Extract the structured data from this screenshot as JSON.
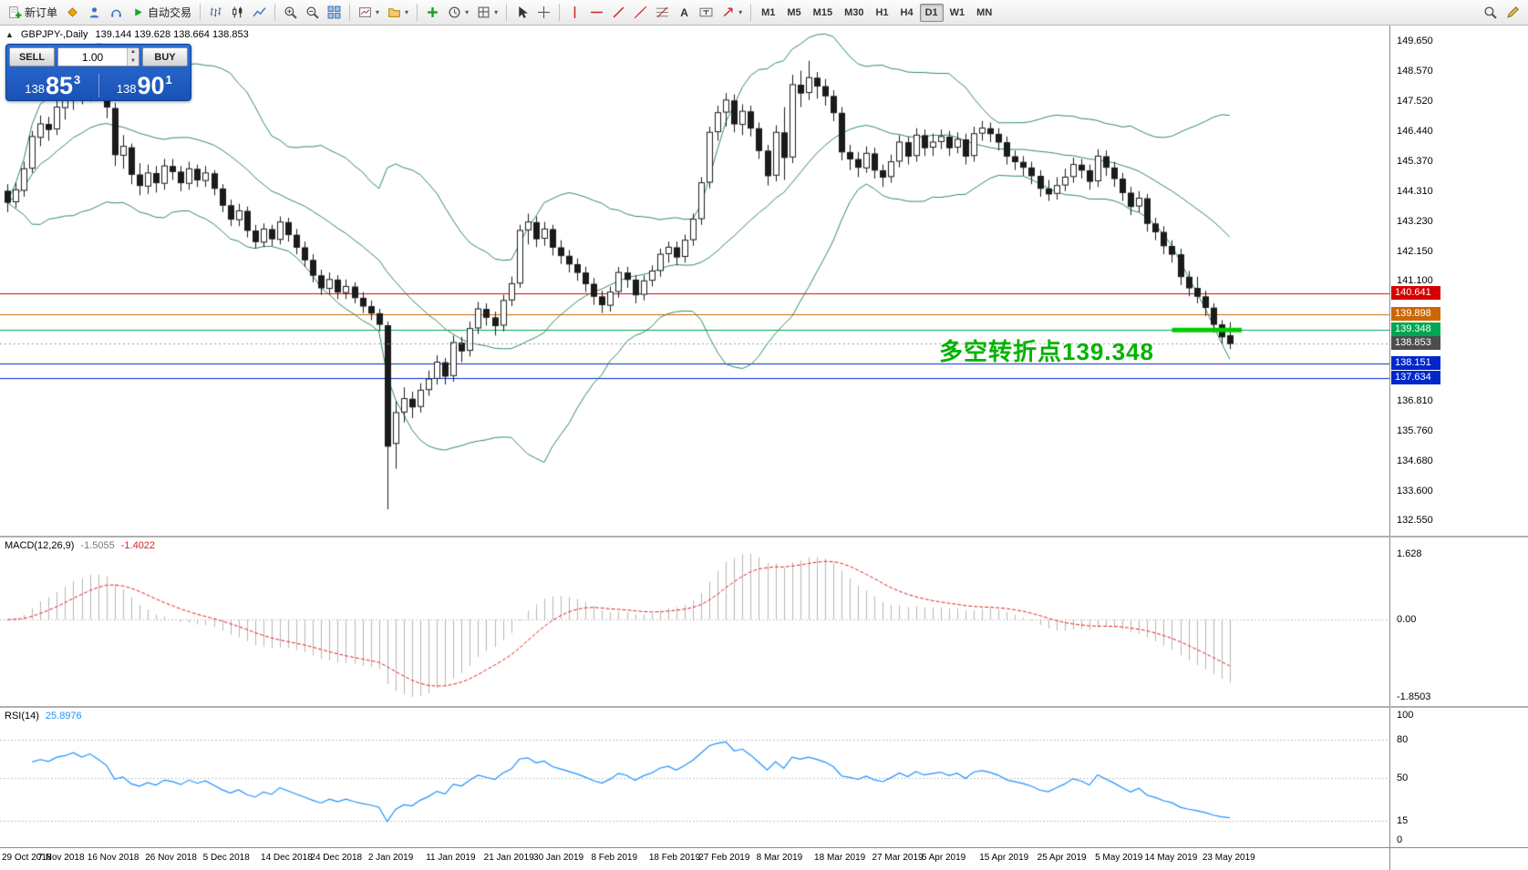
{
  "toolbar": {
    "new_order_label": "新订单",
    "autotrading_label": "自动交易",
    "timeframes": [
      "M1",
      "M5",
      "M15",
      "M30",
      "H1",
      "H4",
      "D1",
      "W1",
      "MN"
    ],
    "active_timeframe": "D1"
  },
  "trade_panel": {
    "sell_label": "SELL",
    "buy_label": "BUY",
    "volume": "1.00",
    "sell_price": {
      "main": "138",
      "pips": "85",
      "pt": "3"
    },
    "buy_price": {
      "main": "138",
      "pips": "90",
      "pt": "1"
    }
  },
  "chart": {
    "symbol_period": "GBPJPY-,Daily",
    "ohlc_text": "139.144 139.628 138.664 138.853",
    "annotation": {
      "text": "多空转折点139.348",
      "color": "#00b300"
    },
    "price_axis_labels": [
      "149.650",
      "148.570",
      "147.520",
      "146.440",
      "145.370",
      "144.310",
      "143.230",
      "142.150",
      "141.100",
      "136.810",
      "135.760",
      "134.680",
      "133.600",
      "132.550"
    ],
    "price_tags": [
      {
        "label": "140.641",
        "price": 140.641,
        "bg": "#d60000"
      },
      {
        "label": "139.898",
        "price": 139.898,
        "bg": "#cc6600"
      },
      {
        "label": "139.348",
        "price": 139.348,
        "bg": "#00a651"
      },
      {
        "label": "138.853",
        "price": 138.853,
        "bg": "#4d4d4d"
      },
      {
        "label": "138.151",
        "price": 138.151,
        "bg": "#0026cc"
      },
      {
        "label": "137.634",
        "price": 137.634,
        "bg": "#0026cc"
      }
    ],
    "levels": [
      {
        "price": 140.641,
        "color": "#d60000"
      },
      {
        "price": 139.898,
        "color": "#cc6600"
      },
      {
        "price": 139.348,
        "color": "#00a651"
      },
      {
        "price": 138.151,
        "color": "#0026cc"
      },
      {
        "price": 137.634,
        "color": "#0026cc"
      }
    ],
    "bid_line": {
      "price": 138.853,
      "color": "#999999"
    },
    "highlight": {
      "price": 139.348,
      "from_index": 141,
      "to_x": 1362,
      "color": "#00ca00"
    }
  },
  "macd": {
    "label": "MACD(12,26,9)",
    "value_main": "-1.5055",
    "value_signal": "-1.4022",
    "axis": [
      "1.628",
      "0.00",
      "-1.8503"
    ],
    "histogram_color": "#b6b6b6",
    "signal_color": "#e02020"
  },
  "rsi": {
    "label": "RSI(14)",
    "value": "25.8976",
    "axis": [
      "100",
      "80",
      "50",
      "15",
      "0"
    ],
    "levels": [
      80,
      50,
      15
    ],
    "line_color": "#1E90FF"
  },
  "chart_data": [
    {
      "type": "candlestick",
      "title": "GBPJPY-,Daily",
      "ylim": [
        132.4,
        149.95
      ],
      "x_labels": [
        "29 Oct 2018",
        "7 Nov 2018",
        "16 Nov 2018",
        "26 Nov 2018",
        "5 Dec 2018",
        "14 Dec 2018",
        "24 Dec 2018",
        "2 Jan 2019",
        "11 Jan 2019",
        "21 Jan 2019",
        "30 Jan 2019",
        "8 Feb 2019",
        "18 Feb 2019",
        "27 Feb 2019",
        "8 Mar 2019",
        "18 Mar 2019",
        "27 Mar 2019",
        "5 Apr 2019",
        "15 Apr 2019",
        "25 Apr 2019",
        "5 May 2019",
        "14 May 2019",
        "23 May 2019"
      ],
      "overlays": {
        "bollinger_bands": {
          "period": 20,
          "deviation": 2,
          "color": "#2E8B57"
        },
        "horizontal_levels": [
          140.641,
          139.898,
          139.348,
          138.151,
          137.634
        ],
        "current_price": 138.853,
        "trend_marker_price": 139.348
      },
      "ohlc": [
        [
          144.3,
          144.55,
          143.55,
          143.9
        ],
        [
          143.92,
          144.6,
          143.7,
          144.35
        ],
        [
          144.33,
          145.35,
          144.1,
          145.1
        ],
        [
          145.12,
          146.45,
          144.95,
          146.25
        ],
        [
          146.22,
          147.0,
          145.9,
          146.7
        ],
        [
          146.68,
          146.95,
          146.1,
          146.5
        ],
        [
          146.52,
          147.55,
          146.3,
          147.3
        ],
        [
          147.28,
          147.9,
          146.85,
          147.6
        ],
        [
          147.58,
          148.35,
          147.2,
          148.2
        ],
        [
          148.18,
          148.4,
          147.4,
          147.8
        ],
        [
          147.78,
          148.5,
          147.5,
          148.4
        ],
        [
          148.38,
          148.55,
          147.55,
          147.9
        ],
        [
          147.88,
          148.6,
          146.9,
          147.3
        ],
        [
          147.25,
          147.45,
          145.2,
          145.6
        ],
        [
          145.58,
          146.3,
          145.1,
          145.9
        ],
        [
          145.85,
          146.0,
          144.55,
          144.9
        ],
        [
          144.88,
          145.3,
          144.15,
          144.5
        ],
        [
          144.48,
          145.25,
          144.2,
          144.95
        ],
        [
          144.93,
          145.2,
          144.25,
          144.6
        ],
        [
          144.58,
          145.45,
          144.35,
          145.2
        ],
        [
          145.18,
          145.45,
          144.7,
          145.0
        ],
        [
          144.98,
          145.2,
          144.3,
          144.6
        ],
        [
          144.58,
          145.35,
          144.35,
          145.1
        ],
        [
          145.08,
          145.25,
          144.45,
          144.7
        ],
        [
          144.68,
          145.2,
          144.45,
          144.95
        ],
        [
          144.92,
          145.05,
          144.15,
          144.4
        ],
        [
          144.38,
          144.55,
          143.55,
          143.8
        ],
        [
          143.78,
          144.0,
          143.05,
          143.3
        ],
        [
          143.28,
          143.85,
          143.05,
          143.6
        ],
        [
          143.58,
          143.75,
          142.65,
          142.9
        ],
        [
          142.88,
          143.1,
          142.25,
          142.5
        ],
        [
          142.48,
          143.15,
          142.3,
          142.95
        ],
        [
          142.93,
          143.1,
          142.35,
          142.6
        ],
        [
          142.58,
          143.4,
          142.4,
          143.2
        ],
        [
          143.18,
          143.35,
          142.5,
          142.75
        ],
        [
          142.73,
          142.95,
          142.05,
          142.3
        ],
        [
          142.28,
          142.5,
          141.6,
          141.85
        ],
        [
          141.83,
          142.05,
          141.05,
          141.3
        ],
        [
          141.28,
          141.5,
          140.6,
          140.85
        ],
        [
          140.83,
          141.4,
          140.6,
          141.15
        ],
        [
          141.13,
          141.3,
          140.45,
          140.7
        ],
        [
          140.68,
          141.15,
          140.45,
          140.9
        ],
        [
          140.88,
          141.05,
          140.3,
          140.5
        ],
        [
          140.48,
          140.7,
          139.95,
          140.2
        ],
        [
          140.18,
          140.4,
          139.7,
          139.95
        ],
        [
          139.93,
          140.1,
          139.3,
          139.55
        ],
        [
          139.5,
          139.65,
          132.95,
          135.2
        ],
        [
          135.3,
          136.8,
          134.4,
          136.4
        ],
        [
          136.42,
          137.3,
          136.05,
          136.9
        ],
        [
          136.88,
          137.15,
          136.2,
          136.6
        ],
        [
          136.62,
          137.45,
          136.4,
          137.2
        ],
        [
          137.22,
          137.9,
          137.0,
          137.6
        ],
        [
          137.62,
          138.45,
          137.4,
          138.2
        ],
        [
          138.18,
          138.35,
          137.4,
          137.7
        ],
        [
          137.72,
          139.15,
          137.5,
          138.9
        ],
        [
          138.88,
          139.1,
          138.2,
          138.6
        ],
        [
          138.62,
          139.65,
          138.4,
          139.4
        ],
        [
          139.42,
          140.35,
          139.2,
          140.1
        ],
        [
          140.08,
          140.3,
          139.5,
          139.8
        ],
        [
          139.78,
          140.0,
          139.15,
          139.5
        ],
        [
          139.52,
          140.6,
          139.3,
          140.4
        ],
        [
          140.42,
          141.25,
          140.2,
          141.0
        ],
        [
          141.02,
          143.1,
          140.85,
          142.9
        ],
        [
          142.92,
          143.5,
          142.4,
          143.2
        ],
        [
          143.18,
          143.4,
          142.3,
          142.6
        ],
        [
          142.62,
          143.2,
          142.35,
          142.95
        ],
        [
          142.93,
          143.1,
          142.0,
          142.3
        ],
        [
          142.28,
          142.55,
          141.7,
          142.0
        ],
        [
          141.98,
          142.2,
          141.4,
          141.7
        ],
        [
          141.68,
          141.9,
          141.1,
          141.4
        ],
        [
          141.38,
          141.6,
          140.7,
          141.0
        ],
        [
          140.98,
          141.2,
          140.25,
          140.55
        ],
        [
          140.53,
          140.75,
          139.95,
          140.25
        ],
        [
          140.23,
          140.9,
          140.0,
          140.7
        ],
        [
          140.72,
          141.6,
          140.5,
          141.4
        ],
        [
          141.38,
          141.6,
          140.85,
          141.15
        ],
        [
          141.13,
          141.3,
          140.3,
          140.6
        ],
        [
          140.62,
          141.3,
          140.4,
          141.1
        ],
        [
          141.12,
          141.65,
          140.9,
          141.45
        ],
        [
          141.47,
          142.25,
          141.25,
          142.05
        ],
        [
          142.07,
          142.5,
          141.75,
          142.3
        ],
        [
          142.28,
          142.5,
          141.65,
          141.95
        ],
        [
          141.97,
          142.75,
          141.75,
          142.55
        ],
        [
          142.57,
          143.5,
          142.35,
          143.3
        ],
        [
          143.32,
          144.8,
          143.1,
          144.6
        ],
        [
          144.62,
          146.6,
          144.4,
          146.4
        ],
        [
          146.42,
          147.35,
          146.1,
          147.1
        ],
        [
          147.12,
          147.8,
          146.6,
          147.55
        ],
        [
          147.52,
          147.75,
          146.4,
          146.7
        ],
        [
          146.68,
          147.4,
          146.3,
          147.15
        ],
        [
          147.13,
          147.35,
          146.25,
          146.55
        ],
        [
          146.53,
          146.75,
          145.45,
          145.75
        ],
        [
          145.73,
          145.95,
          144.5,
          144.85
        ],
        [
          144.87,
          146.65,
          144.65,
          146.4
        ],
        [
          146.38,
          147.3,
          144.7,
          145.5
        ],
        [
          145.52,
          148.45,
          145.3,
          148.1
        ],
        [
          148.08,
          148.6,
          147.3,
          147.8
        ],
        [
          147.82,
          148.95,
          147.55,
          148.35
        ],
        [
          148.33,
          148.55,
          147.6,
          148.05
        ],
        [
          148.03,
          148.3,
          147.35,
          147.7
        ],
        [
          147.68,
          147.9,
          146.8,
          147.1
        ],
        [
          147.08,
          147.3,
          145.4,
          145.7
        ],
        [
          145.68,
          145.95,
          145.05,
          145.45
        ],
        [
          145.43,
          145.7,
          144.8,
          145.15
        ],
        [
          145.13,
          145.9,
          144.95,
          145.65
        ],
        [
          145.63,
          145.85,
          144.75,
          145.05
        ],
        [
          145.03,
          145.25,
          144.45,
          144.8
        ],
        [
          144.82,
          145.6,
          144.6,
          145.35
        ],
        [
          145.37,
          146.3,
          145.15,
          146.05
        ],
        [
          146.03,
          146.25,
          145.25,
          145.55
        ],
        [
          145.57,
          146.55,
          145.35,
          146.3
        ],
        [
          146.28,
          146.5,
          145.55,
          145.85
        ],
        [
          145.87,
          146.35,
          145.55,
          146.05
        ],
        [
          146.07,
          146.5,
          145.8,
          146.25
        ],
        [
          146.23,
          146.45,
          145.55,
          145.85
        ],
        [
          145.87,
          146.4,
          145.65,
          146.15
        ],
        [
          146.13,
          146.35,
          145.25,
          145.55
        ],
        [
          145.57,
          146.6,
          145.35,
          146.35
        ],
        [
          146.37,
          146.8,
          146.1,
          146.55
        ],
        [
          146.53,
          146.75,
          146.05,
          146.35
        ],
        [
          146.33,
          146.55,
          145.75,
          146.05
        ],
        [
          146.03,
          146.25,
          145.25,
          145.55
        ],
        [
          145.53,
          145.75,
          145.05,
          145.35
        ],
        [
          145.33,
          145.55,
          144.85,
          145.15
        ],
        [
          145.13,
          145.35,
          144.55,
          144.85
        ],
        [
          144.83,
          145.05,
          144.1,
          144.4
        ],
        [
          144.38,
          144.7,
          143.95,
          144.2
        ],
        [
          144.22,
          144.8,
          144.0,
          144.5
        ],
        [
          144.52,
          145.1,
          144.3,
          144.8
        ],
        [
          144.82,
          145.5,
          144.6,
          145.25
        ],
        [
          145.23,
          145.45,
          144.75,
          145.05
        ],
        [
          145.03,
          145.25,
          144.35,
          144.65
        ],
        [
          144.67,
          145.8,
          144.45,
          145.55
        ],
        [
          145.53,
          145.75,
          144.85,
          145.15
        ],
        [
          145.13,
          145.35,
          144.45,
          144.75
        ],
        [
          144.73,
          144.95,
          143.95,
          144.25
        ],
        [
          144.23,
          144.45,
          143.45,
          143.75
        ],
        [
          143.77,
          144.3,
          143.55,
          144.05
        ],
        [
          144.03,
          144.2,
          142.85,
          143.15
        ],
        [
          143.13,
          143.35,
          142.55,
          142.85
        ],
        [
          142.83,
          143.05,
          142.05,
          142.35
        ],
        [
          142.33,
          142.55,
          141.75,
          142.05
        ],
        [
          142.03,
          142.25,
          140.95,
          141.25
        ],
        [
          141.23,
          141.45,
          140.55,
          140.85
        ],
        [
          140.83,
          141.25,
          140.3,
          140.55
        ],
        [
          140.53,
          140.75,
          139.85,
          140.15
        ],
        [
          140.13,
          140.3,
          139.25,
          139.55
        ],
        [
          139.53,
          139.7,
          138.85,
          139.1
        ],
        [
          139.144,
          139.628,
          138.664,
          138.853
        ]
      ]
    },
    {
      "type": "line",
      "name": "MACD(12,26,9)",
      "current_macd": -1.5055,
      "current_signal": -1.4022,
      "ylim": [
        -1.8503,
        1.628
      ]
    },
    {
      "type": "line",
      "name": "RSI(14)",
      "current": 25.8976,
      "levels": [
        80,
        50,
        15
      ],
      "ylim": [
        0,
        100
      ]
    }
  ]
}
